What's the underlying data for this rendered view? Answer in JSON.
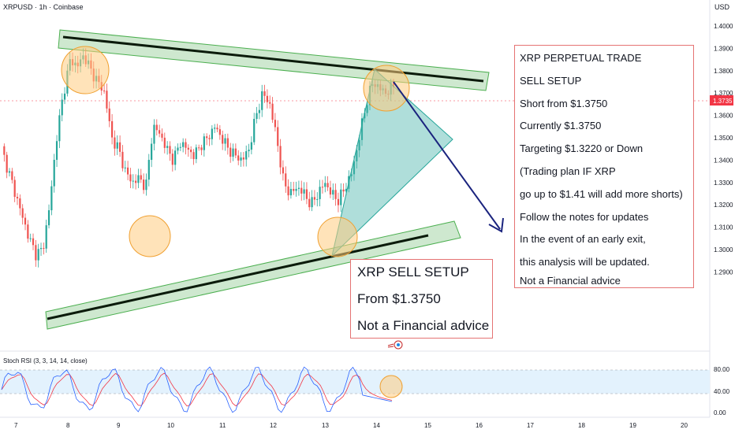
{
  "header": {
    "symbol": "XRPUSD",
    "timeframe": "1h",
    "exchange": "Coinbase",
    "title": "XRPUSD · 1h · Coinbase"
  },
  "currency_label": "USD",
  "price_axis": {
    "ticks": [
      "1.4000",
      "1.3900",
      "1.3800",
      "1.3700",
      "1.3600",
      "1.3500",
      "1.3400",
      "1.3300",
      "1.3200",
      "1.3100",
      "1.3000",
      "1.2900"
    ],
    "current_price": "1.3735",
    "current_price_color": "#f23645"
  },
  "date_axis": {
    "ticks": [
      "7",
      "8",
      "9",
      "10",
      "11",
      "12",
      "13",
      "14",
      "15",
      "16",
      "17",
      "18",
      "19",
      "20"
    ]
  },
  "trade_plan": {
    "lines": [
      "XRP PERPETUAL TRADE",
      "SELL SETUP",
      "Short from $1.3750",
      "Currently $1.3750",
      "Targeting $1.3220 or Down",
      "(Trading plan IF XRP",
      "go up to $1.41 will add more shorts)",
      "Follow the notes for updates",
      "In the event of an early exit,",
      "this analysis will be updated.",
      "Not a Financial advice"
    ]
  },
  "setup_box": {
    "lines": [
      "XRP SELL SETUP",
      "From $1.3750",
      "Not a Financial advice"
    ]
  },
  "indicator": {
    "label": "Stoch RSI (3, 3, 14, 14, close)",
    "ticks": [
      "80.00",
      "40.00",
      "0.00"
    ],
    "k_color": "#2962ff",
    "d_color": "#f23645",
    "band_color": "#e3f2fd"
  },
  "colors": {
    "up_candle": "#26a69a",
    "down_candle": "#ef5350",
    "channel_fill": "#a5d6a7",
    "channel_stroke": "#4caf50",
    "trend_line": "#0b1b0b",
    "circle_fill": "#ffcc80",
    "circle_stroke": "#f0a030",
    "arrow": "#1a237e",
    "note_border": "#e57373"
  },
  "chart_data": {
    "type": "candlestick",
    "symbol": "XRPUSD",
    "interval": "1h",
    "y_unit": "USD",
    "y_range": [
      1.285,
      1.405
    ],
    "x_labels": [
      "7",
      "8",
      "9",
      "10",
      "11",
      "12",
      "13",
      "14",
      "15",
      "16",
      "17",
      "18",
      "19",
      "20"
    ],
    "close_path": [
      1.345,
      1.335,
      1.325,
      1.315,
      1.305,
      1.298,
      1.3,
      1.32,
      1.35,
      1.37,
      1.385,
      1.382,
      1.387,
      1.38,
      1.375,
      1.37,
      1.35,
      1.345,
      1.335,
      1.33,
      1.332,
      1.328,
      1.355,
      1.352,
      1.345,
      1.34,
      1.348,
      1.345,
      1.342,
      1.347,
      1.35,
      1.355,
      1.35,
      1.345,
      1.342,
      1.34,
      1.345,
      1.36,
      1.37,
      1.365,
      1.35,
      1.33,
      1.325,
      1.328,
      1.325,
      1.32,
      1.325,
      1.33,
      1.325,
      1.322,
      1.328,
      1.335,
      1.35,
      1.365,
      1.375,
      1.372,
      1.37,
      1.3735
    ],
    "annotations": {
      "sell_entry": 1.375,
      "target": 1.322,
      "add_shorts_level": 1.41
    }
  }
}
